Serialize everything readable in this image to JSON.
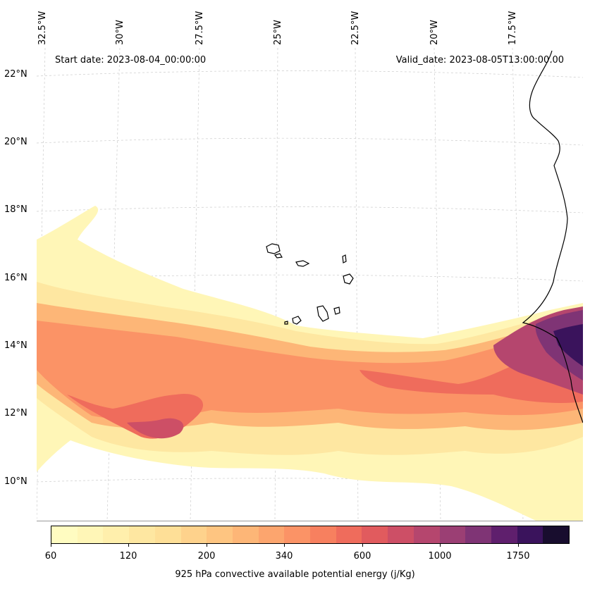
{
  "map": {
    "start_date": "Start date: 2023-08-04_00:00:00",
    "valid_date": "Valid_date: 2023-08-05T13:00:00.00",
    "longitude_labels": [
      "32.5°W",
      "30°W",
      "27.5°W",
      "25°W",
      "22.5°W",
      "20°W",
      "17.5°W"
    ],
    "latitude_labels": [
      "22°N",
      "20°N",
      "18°N",
      "16°N",
      "14°N",
      "12°N",
      "10°N"
    ],
    "colorbar_title": "925 hPa convective available potential energy (j/Kg)",
    "colorbar_ticks": [
      "60",
      "120",
      "200",
      "340",
      "600",
      "1000",
      "1750"
    ],
    "colorbar_colors": [
      "#fffcc1",
      "#fff6b7",
      "#ffefac",
      "#fee7a1",
      "#fedf97",
      "#fed28c",
      "#fec581",
      "#fdb677",
      "#fca56e",
      "#fb9366",
      "#f7805f",
      "#ef6c5c",
      "#e15b5e",
      "#cd4f66",
      "#b5466e",
      "#9b3f74",
      "#7f3475",
      "#5f1f6d",
      "#3a135c",
      "#180d2e"
    ]
  }
}
